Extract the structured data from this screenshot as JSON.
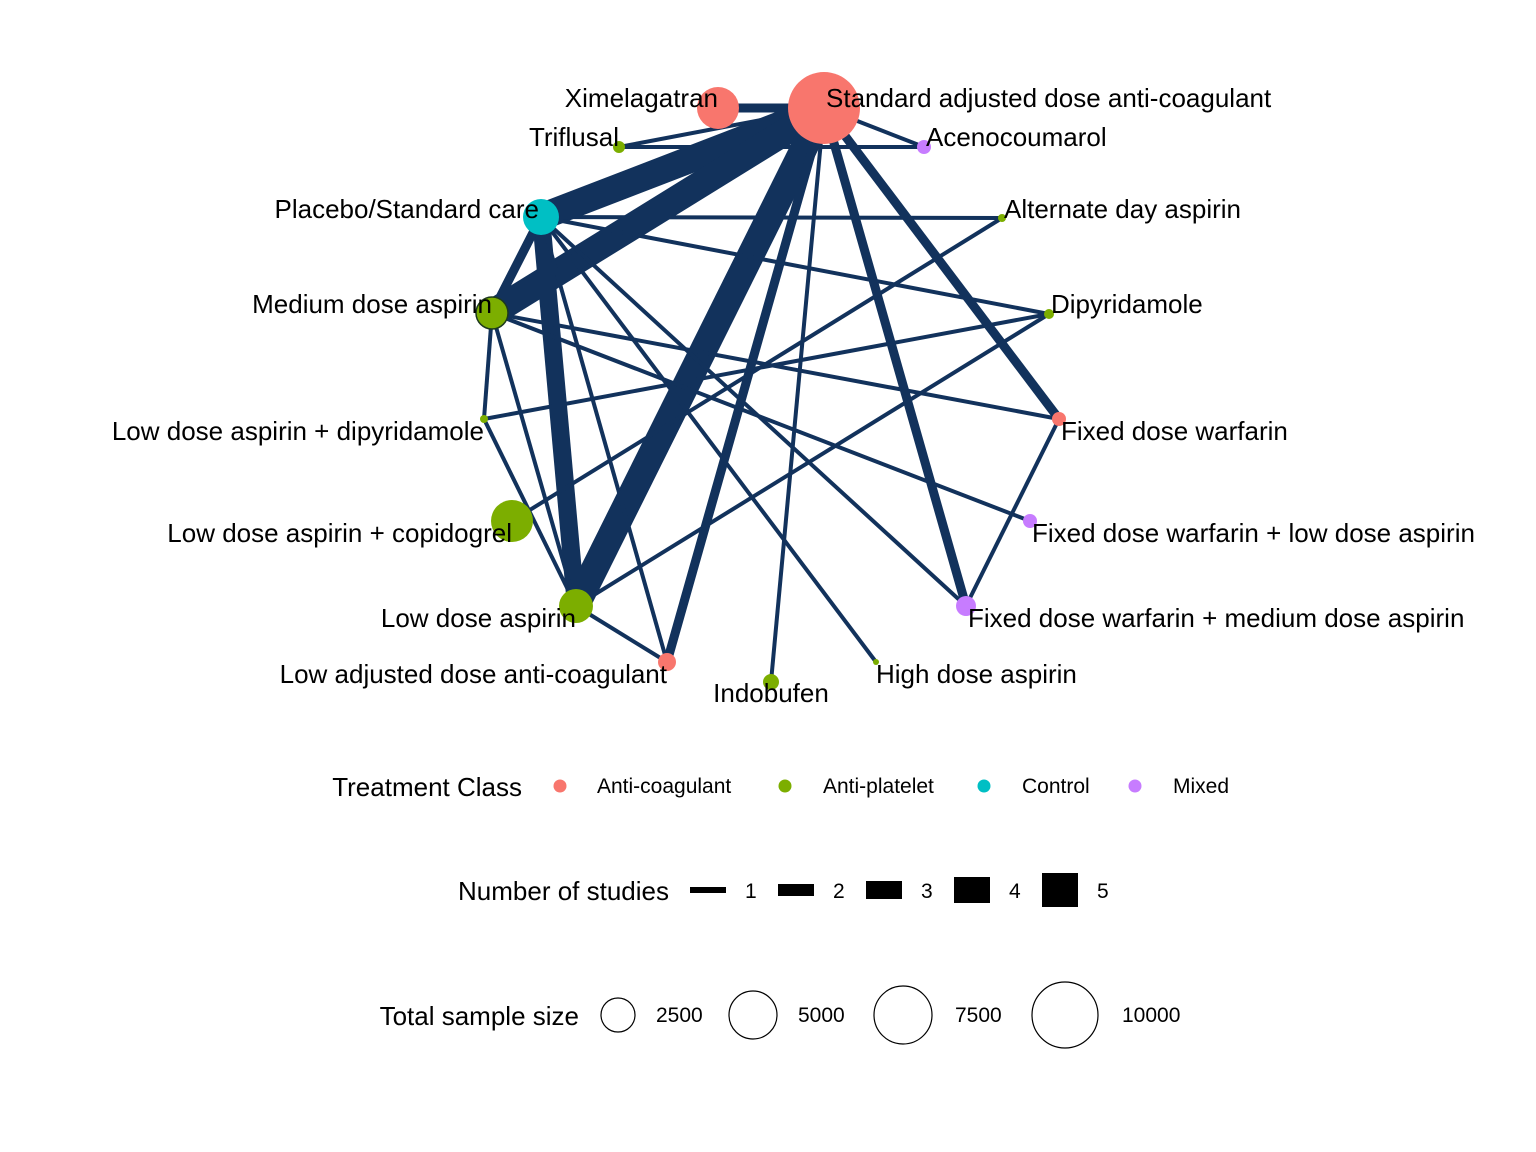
{
  "network": {
    "edge_color": "#12325c",
    "node_outline": "#1d3a1d",
    "nodes": [
      {
        "id": "SADAC",
        "label": "Standard adjusted dose anti-coagulant",
        "class": "Anti-coagulant"
      },
      {
        "id": "XIM",
        "label": "Ximelagatran",
        "class": "Anti-coagulant"
      },
      {
        "id": "TRI",
        "label": "Triflusal",
        "class": "Anti-platelet"
      },
      {
        "id": "ACE",
        "label": "Acenocoumarol",
        "class": "Mixed"
      },
      {
        "id": "PLA",
        "label": "Placebo/Standard care",
        "class": "Control"
      },
      {
        "id": "ALT",
        "label": "Alternate day aspirin",
        "class": "Anti-platelet"
      },
      {
        "id": "MDA",
        "label": "Medium dose aspirin",
        "class": "Anti-platelet"
      },
      {
        "id": "DIP",
        "label": "Dipyridamole",
        "class": "Anti-platelet"
      },
      {
        "id": "LDAD",
        "label": "Low dose aspirin + dipyridamole",
        "class": "Anti-platelet"
      },
      {
        "id": "FDW",
        "label": "Fixed dose warfarin",
        "class": "Anti-coagulant"
      },
      {
        "id": "LDAC",
        "label": "Low dose aspirin + copidogrel",
        "class": "Anti-platelet"
      },
      {
        "id": "FDWL",
        "label": "Fixed dose warfarin + low dose aspirin",
        "class": "Mixed"
      },
      {
        "id": "LDA",
        "label": "Low dose aspirin",
        "class": "Anti-platelet"
      },
      {
        "id": "FDWM",
        "label": "Fixed dose warfarin + medium dose aspirin",
        "class": "Mixed"
      },
      {
        "id": "LADAC",
        "label": "Low adjusted dose anti-coagulant",
        "class": "Anti-coagulant"
      },
      {
        "id": "IND",
        "label": "Indobufen",
        "class": "Anti-platelet"
      },
      {
        "id": "HDA",
        "label": "High dose aspirin",
        "class": "Anti-platelet"
      }
    ],
    "edges": [
      {
        "from": "SADAC",
        "to": "PLA",
        "studies": 5
      },
      {
        "from": "SADAC",
        "to": "MDA",
        "studies": 5
      },
      {
        "from": "SADAC",
        "to": "LDA",
        "studies": 5
      },
      {
        "from": "PLA",
        "to": "LDA",
        "studies": 4
      },
      {
        "from": "SADAC",
        "to": "XIM",
        "studies": 2
      },
      {
        "from": "SADAC",
        "to": "LADAC",
        "studies": 2
      },
      {
        "from": "SADAC",
        "to": "FDW",
        "studies": 2
      },
      {
        "from": "SADAC",
        "to": "FDWM",
        "studies": 2
      },
      {
        "from": "PLA",
        "to": "MDA",
        "studies": 2
      },
      {
        "from": "SADAC",
        "to": "TRI",
        "studies": 1
      },
      {
        "from": "SADAC",
        "to": "ACE",
        "studies": 1
      },
      {
        "from": "SADAC",
        "to": "IND",
        "studies": 1
      },
      {
        "from": "PLA",
        "to": "ALT",
        "studies": 1
      },
      {
        "from": "PLA",
        "to": "DIP",
        "studies": 1
      },
      {
        "from": "PLA",
        "to": "FDWM",
        "studies": 1
      },
      {
        "from": "PLA",
        "to": "HDA",
        "studies": 1
      },
      {
        "from": "PLA",
        "to": "LADAC",
        "studies": 1
      },
      {
        "from": "MDA",
        "to": "LDAD",
        "studies": 1
      },
      {
        "from": "MDA",
        "to": "FDW",
        "studies": 1
      },
      {
        "from": "MDA",
        "to": "FDWL",
        "studies": 1
      },
      {
        "from": "MDA",
        "to": "LDA",
        "studies": 1
      },
      {
        "from": "LDAD",
        "to": "DIP",
        "studies": 1
      },
      {
        "from": "LDAD",
        "to": "LDA",
        "studies": 1
      },
      {
        "from": "LDAC",
        "to": "ALT",
        "studies": 1
      },
      {
        "from": "LDA",
        "to": "DIP",
        "studies": 1
      },
      {
        "from": "LDA",
        "to": "LADAC",
        "studies": 1
      },
      {
        "from": "FDW",
        "to": "FDWM",
        "studies": 1
      },
      {
        "from": "ACE",
        "to": "TRI",
        "studies": 1
      }
    ]
  },
  "legend": {
    "class_title": "Treatment Class",
    "classes": [
      {
        "name": "Anti-coagulant",
        "color": "#f8766d"
      },
      {
        "name": "Anti-platelet",
        "color": "#7cae00"
      },
      {
        "name": "Control",
        "color": "#00bfc4"
      },
      {
        "name": "Mixed",
        "color": "#c77cff"
      }
    ],
    "studies_title": "Number of studies",
    "studies": [
      "1",
      "2",
      "3",
      "4",
      "5"
    ],
    "size_title": "Total sample size",
    "sizes": [
      "2500",
      "5000",
      "7500",
      "10000"
    ]
  }
}
